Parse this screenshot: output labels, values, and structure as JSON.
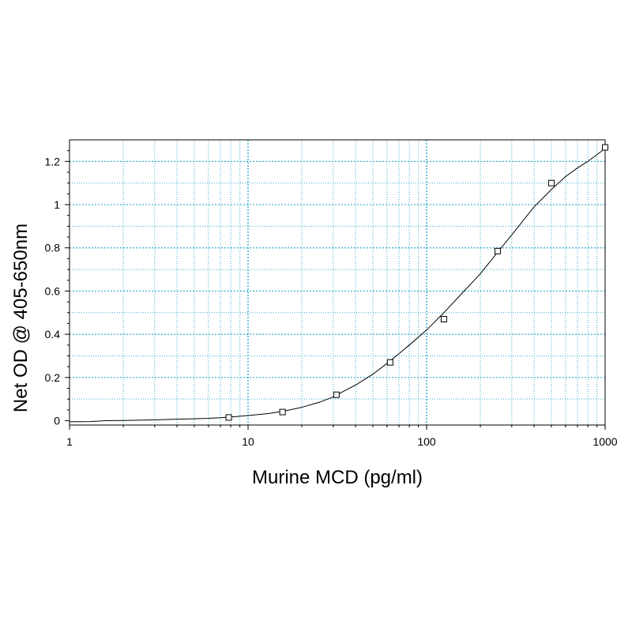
{
  "chart_data": {
    "type": "scatter",
    "title": "",
    "xlabel": "Murine MCD (pg/ml)",
    "ylabel": "Net OD @ 405-650nm",
    "x_scale": "log",
    "xlim": [
      1,
      1000
    ],
    "ylim": [
      -0.02,
      1.3
    ],
    "x_ticks": [
      1,
      10,
      100,
      1000
    ],
    "x_tick_labels": [
      "1",
      "10",
      "100",
      "1000"
    ],
    "y_ticks": [
      0,
      0.2,
      0.4,
      0.6,
      0.8,
      1,
      1.2
    ],
    "y_tick_labels": [
      "0",
      "0.2",
      "0.4",
      "0.6",
      "0.8",
      "1",
      "1.2"
    ],
    "grid": true,
    "grid_color": "#33aacc",
    "legend": "none",
    "series": [
      {
        "marker": "open-square",
        "x": [
          7.8,
          15.6,
          31.25,
          62.5,
          125,
          250,
          500,
          1000
        ],
        "y": [
          0.015,
          0.04,
          0.12,
          0.27,
          0.47,
          0.785,
          1.1,
          1.265
        ]
      }
    ],
    "fit_curve": {
      "type": "sigmoid-fit",
      "x": [
        1,
        1.3,
        1.6,
        2,
        3,
        4,
        5,
        6,
        7,
        8,
        10,
        13,
        16,
        20,
        25,
        30,
        35,
        40,
        50,
        60,
        70,
        80,
        100,
        125,
        150,
        200,
        250,
        300,
        400,
        500,
        600,
        700,
        800,
        1000
      ],
      "y": [
        -0.005,
        -0.004,
        0.0,
        0.001,
        0.004,
        0.007,
        0.009,
        0.011,
        0.014,
        0.017,
        0.024,
        0.033,
        0.045,
        0.062,
        0.085,
        0.11,
        0.14,
        0.165,
        0.215,
        0.265,
        0.31,
        0.35,
        0.42,
        0.5,
        0.57,
        0.68,
        0.78,
        0.86,
        0.99,
        1.07,
        1.13,
        1.17,
        1.2,
        1.26
      ]
    }
  }
}
